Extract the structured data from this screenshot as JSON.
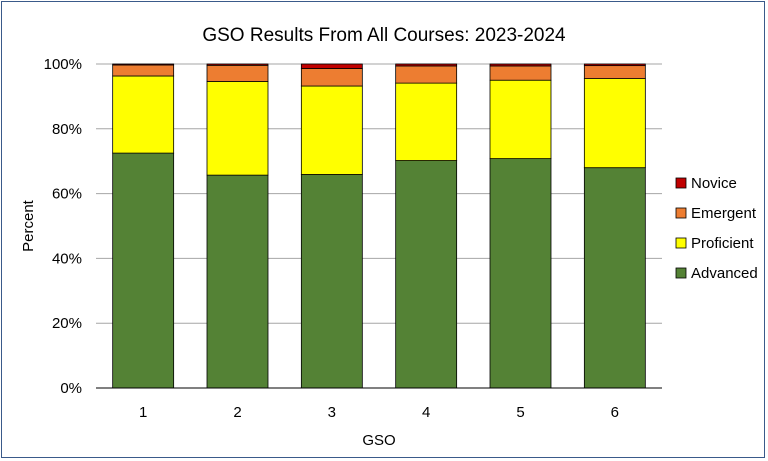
{
  "chart_data": {
    "type": "bar",
    "stacked": true,
    "title": "GSO Results From All Courses: 2023-2024",
    "xlabel": "GSO",
    "ylabel": "Percent",
    "categories": [
      "1",
      "2",
      "3",
      "4",
      "5",
      "6"
    ],
    "ylim": [
      0,
      100
    ],
    "yticks": [
      "0%",
      "20%",
      "40%",
      "60%",
      "80%",
      "100%"
    ],
    "grid": true,
    "legend_position": "right",
    "series": [
      {
        "name": "Advanced",
        "color": "#548235",
        "values": [
          72.5,
          65.7,
          65.9,
          70.2,
          70.8,
          68.0
        ]
      },
      {
        "name": "Proficient",
        "color": "#ffff00",
        "values": [
          23.8,
          28.9,
          27.3,
          23.9,
          24.2,
          27.5
        ]
      },
      {
        "name": "Emergent",
        "color": "#ed7d31",
        "values": [
          3.4,
          5.0,
          5.4,
          5.3,
          4.4,
          4.0
        ]
      },
      {
        "name": "Novice",
        "color": "#c00000",
        "values": [
          0.3,
          0.4,
          1.4,
          0.6,
          0.6,
          0.5
        ]
      }
    ]
  }
}
